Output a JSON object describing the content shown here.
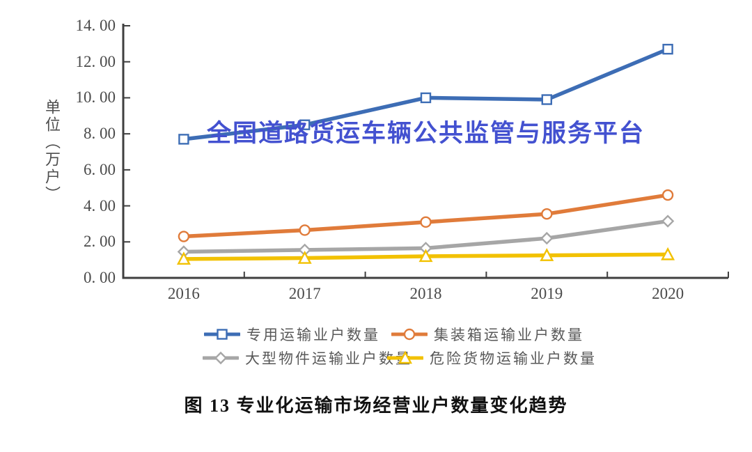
{
  "watermark": {
    "text": "全国道路货运车辆公共监管与服务平台",
    "color": "#4351d0"
  },
  "caption": {
    "text": "图 13 专业化运输市场经营业户数量变化趋势"
  },
  "chart_data": {
    "type": "line",
    "title": "",
    "unit_label": "单位（万户）",
    "xlabel": "",
    "ylabel": "单位（万户）",
    "categories": [
      "2016",
      "2017",
      "2018",
      "2019",
      "2020"
    ],
    "ylim": [
      0,
      14
    ],
    "yticks": [
      {
        "label": "0. 00",
        "value": 0
      },
      {
        "label": "2. 00",
        "value": 2
      },
      {
        "label": "4. 00",
        "value": 4
      },
      {
        "label": "6. 00",
        "value": 6
      },
      {
        "label": "8. 00",
        "value": 8
      },
      {
        "label": "10. 00",
        "value": 10
      },
      {
        "label": "12. 00",
        "value": 12
      },
      {
        "label": "14. 00",
        "value": 14
      }
    ],
    "grid": false,
    "legend_position": "bottom",
    "axis_color": "#3f3f3f",
    "series": [
      {
        "name": "专用运输业户数量",
        "marker": "square",
        "color": "#3d6db5",
        "values": [
          7.7,
          8.5,
          10.0,
          9.9,
          12.7
        ]
      },
      {
        "name": "集装箱运输业户数量",
        "marker": "circle",
        "color": "#e07b3a",
        "values": [
          2.3,
          2.65,
          3.1,
          3.55,
          4.6
        ]
      },
      {
        "name": "大型物件运输业户数量",
        "marker": "diamond",
        "color": "#a6a6a6",
        "values": [
          1.45,
          1.55,
          1.65,
          2.2,
          3.15
        ]
      },
      {
        "name": "危险货物运输业户数量",
        "marker": "triangle",
        "color": "#f2c100",
        "values": [
          1.05,
          1.1,
          1.2,
          1.25,
          1.3
        ]
      }
    ]
  }
}
